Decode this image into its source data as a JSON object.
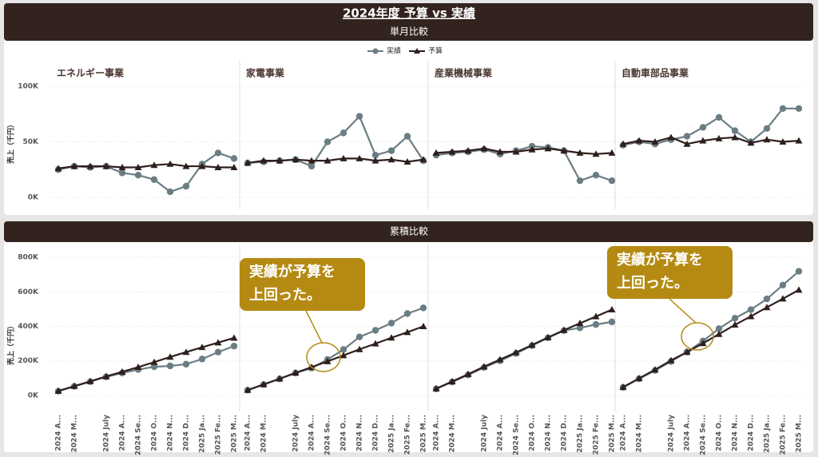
{
  "dashboard": {
    "title": "2024年度 予算 vs 実績",
    "categories": [
      "2024 A...",
      "2024 M...",
      null,
      "2024 July",
      "2024 A...",
      "2024 Se...",
      "2024 O...",
      "2024 N...",
      "2024 D...",
      "2025 Ja...",
      "2025 Fe...",
      "2025 M..."
    ],
    "sections": [
      {
        "title": "単月比較",
        "y_label": "売上（千円）",
        "ylim": [
          -10000,
          110000
        ],
        "yticks": [
          {
            "value": 0,
            "label": "0K"
          },
          {
            "value": 50000,
            "label": "50K"
          },
          {
            "value": 100000,
            "label": "100K"
          }
        ],
        "grid": true,
        "charts": [
          {
            "type": "line",
            "title": "エネルギー事業",
            "series": [
              {
                "name": "実績",
                "color": "#6b7d84",
                "marker": "circle",
                "values": [
                  25000,
                  28000,
                  27000,
                  28000,
                  22000,
                  20000,
                  16000,
                  5000,
                  10000,
                  30000,
                  40000,
                  35000
                ]
              },
              {
                "name": "予算",
                "color": "#2e1f1d",
                "marker": "triangle",
                "values": [
                  26000,
                  28000,
                  28000,
                  28000,
                  27000,
                  27000,
                  29000,
                  30000,
                  28000,
                  28000,
                  27000,
                  27000
                ]
              }
            ]
          },
          {
            "type": "line",
            "title": "家電事業",
            "series": [
              {
                "name": "実績",
                "color": "#6b7d84",
                "marker": "circle",
                "values": [
                  31000,
                  32000,
                  33000,
                  34000,
                  28000,
                  50000,
                  58000,
                  73000,
                  38000,
                  42000,
                  55000,
                  33000
                ]
              },
              {
                "name": "予算",
                "color": "#2e1f1d",
                "marker": "triangle",
                "values": [
                  31000,
                  33000,
                  33000,
                  34000,
                  33000,
                  33000,
                  35000,
                  35000,
                  33000,
                  34000,
                  32000,
                  34000
                ]
              }
            ]
          },
          {
            "type": "line",
            "title": "産業機械事業",
            "series": [
              {
                "name": "実績",
                "color": "#6b7d84",
                "marker": "circle",
                "values": [
                  38000,
                  40000,
                  41000,
                  43000,
                  39000,
                  42000,
                  46000,
                  45000,
                  42000,
                  15000,
                  20000,
                  15000
                ]
              },
              {
                "name": "予算",
                "color": "#2e1f1d",
                "marker": "triangle",
                "values": [
                  40000,
                  41000,
                  42000,
                  44000,
                  41000,
                  41000,
                  43000,
                  44000,
                  42000,
                  40000,
                  39000,
                  40000
                ]
              }
            ]
          },
          {
            "type": "line",
            "title": "自動車部品事業",
            "series": [
              {
                "name": "実績",
                "color": "#6b7d84",
                "marker": "circle",
                "values": [
                  47000,
                  50000,
                  48000,
                  52000,
                  55000,
                  63000,
                  72000,
                  60000,
                  50000,
                  62000,
                  80000,
                  80000
                ]
              },
              {
                "name": "予算",
                "color": "#2e1f1d",
                "marker": "triangle",
                "values": [
                  48000,
                  51000,
                  50000,
                  54000,
                  48000,
                  51000,
                  53000,
                  54000,
                  49000,
                  52000,
                  50000,
                  51000
                ]
              }
            ]
          }
        ]
      },
      {
        "title": "累積比較",
        "y_label": "売上（千円）",
        "ylim": [
          -100000,
          900000
        ],
        "yticks": [
          {
            "value": 0,
            "label": "0K"
          },
          {
            "value": 200000,
            "label": "200K"
          },
          {
            "value": 400000,
            "label": "400K"
          },
          {
            "value": 600000,
            "label": "600K"
          },
          {
            "value": 800000,
            "label": "800K"
          }
        ],
        "grid": true,
        "charts": [
          {
            "type": "line",
            "series": [
              {
                "name": "実績",
                "color": "#6b7d84",
                "marker": "circle",
                "values": [
                  25000,
                  53000,
                  80000,
                  108000,
                  130000,
                  150000,
                  166000,
                  171000,
                  181000,
                  211000,
                  251000,
                  286000
                ]
              },
              {
                "name": "予算",
                "color": "#2e1f1d",
                "marker": "triangle",
                "values": [
                  26000,
                  54000,
                  82000,
                  110000,
                  137000,
                  164000,
                  193000,
                  223000,
                  251000,
                  279000,
                  306000,
                  333000
                ]
              }
            ]
          },
          {
            "type": "line",
            "annotation": [
              "実績が予算を",
              "上回った。"
            ],
            "series": [
              {
                "name": "実績",
                "color": "#6b7d84",
                "marker": "circle",
                "values": [
                  31000,
                  63000,
                  96000,
                  130000,
                  158000,
                  208000,
                  266000,
                  339000,
                  377000,
                  419000,
                  474000,
                  507000
                ]
              },
              {
                "name": "予算",
                "color": "#2e1f1d",
                "marker": "triangle",
                "values": [
                  31000,
                  64000,
                  97000,
                  131000,
                  164000,
                  197000,
                  232000,
                  267000,
                  300000,
                  334000,
                  366000,
                  400000
                ]
              }
            ]
          },
          {
            "type": "line",
            "series": [
              {
                "name": "実績",
                "color": "#6b7d84",
                "marker": "circle",
                "values": [
                  38000,
                  78000,
                  119000,
                  162000,
                  201000,
                  243000,
                  289000,
                  334000,
                  376000,
                  391000,
                  411000,
                  426000
                ]
              },
              {
                "name": "予算",
                "color": "#2e1f1d",
                "marker": "triangle",
                "values": [
                  40000,
                  81000,
                  123000,
                  167000,
                  208000,
                  249000,
                  292000,
                  336000,
                  378000,
                  418000,
                  457000,
                  497000
                ]
              }
            ]
          },
          {
            "type": "line",
            "annotation": [
              "実績が予算を",
              "上回った。"
            ],
            "series": [
              {
                "name": "実績",
                "color": "#6b7d84",
                "marker": "circle",
                "values": [
                  47000,
                  97000,
                  145000,
                  197000,
                  252000,
                  315000,
                  387000,
                  447000,
                  497000,
                  559000,
                  639000,
                  719000
                ]
              },
              {
                "name": "予算",
                "color": "#2e1f1d",
                "marker": "triangle",
                "values": [
                  48000,
                  99000,
                  149000,
                  203000,
                  251000,
                  302000,
                  355000,
                  409000,
                  458000,
                  510000,
                  560000,
                  611000
                ]
              }
            ]
          }
        ]
      }
    ]
  }
}
